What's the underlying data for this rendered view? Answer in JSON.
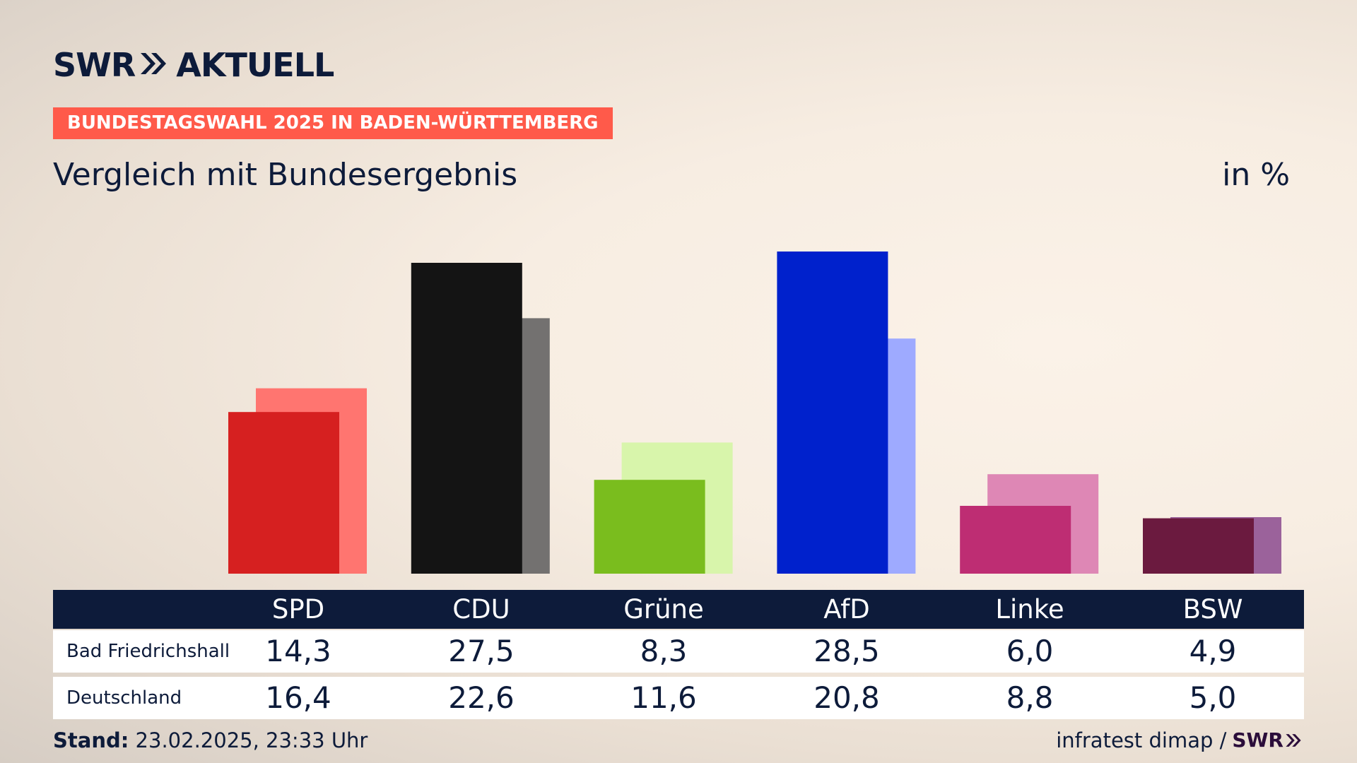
{
  "header": {
    "logo_swr": "SWR",
    "logo_aktuell": "AKTUELL",
    "tag": "BUNDESTAGSWAHL 2025 IN BADEN-WÜRTTEMBERG",
    "title": "Vergleich mit Bundesergebnis",
    "unit": "in %"
  },
  "colors": {
    "background": "#f7ede2",
    "navy": "#0d1b3a",
    "tag_red": "#ff5a4a"
  },
  "chart_data": {
    "type": "bar",
    "categories": [
      "SPD",
      "CDU",
      "Grüne",
      "AfD",
      "Linke",
      "BSW"
    ],
    "series": [
      {
        "name": "Bad Friedrichshall",
        "values": [
          14.3,
          27.5,
          8.3,
          28.5,
          6.0,
          4.9
        ],
        "colors": [
          "#d62020",
          "#141414",
          "#7abd1e",
          "#0021cc",
          "#be2d73",
          "#6b1a3f"
        ]
      },
      {
        "name": "Deutschland",
        "values": [
          16.4,
          22.6,
          11.6,
          20.8,
          8.8,
          5.0
        ],
        "colors": [
          "#ff7570",
          "#737170",
          "#d8f5ab",
          "#9eaaff",
          "#de87b5",
          "#9b629b"
        ]
      }
    ],
    "ylim": [
      0,
      30
    ]
  },
  "table": {
    "header": [
      "SPD",
      "CDU",
      "Grüne",
      "AfD",
      "Linke",
      "BSW"
    ],
    "rows": [
      {
        "label": "Bad Friedrichshall",
        "values": [
          "14,3",
          "27,5",
          "8,3",
          "28,5",
          "6,0",
          "4,9"
        ]
      },
      {
        "label": "Deutschland",
        "values": [
          "16,4",
          "22,6",
          "11,6",
          "20,8",
          "8,8",
          "5,0"
        ]
      }
    ]
  },
  "footer": {
    "stand_label": "Stand:",
    "stand_value": "23.02.2025, 23:33 Uhr",
    "source": "infratest dimap /",
    "logo": "SWR"
  }
}
